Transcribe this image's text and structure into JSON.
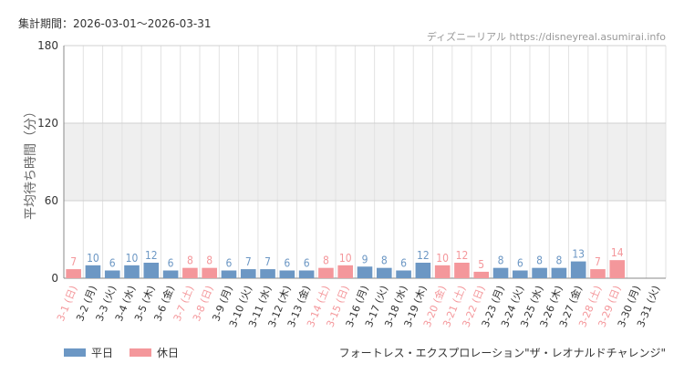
{
  "header": {
    "period_label": "集計期間：",
    "period_value": "2026-03-01～2026-03-31",
    "source_name": "ディズニーリアル",
    "source_url": "https://disneyreal.asumirai.info"
  },
  "legend": {
    "weekday_label": "平日",
    "holiday_label": "休日"
  },
  "attraction": "フォートレス・エクスプロレーション\"ザ・レオナルドチャレンジ\"",
  "colors": {
    "weekday": "#6c97c4",
    "holiday": "#f4979b",
    "band": "#efefef",
    "grid": "#e2e2e2"
  },
  "chart_data": {
    "type": "bar",
    "ylabel": "平均待ち時間（分）",
    "ylim": [
      0,
      180
    ],
    "yticks": [
      "0",
      "60",
      "120",
      "180"
    ],
    "shaded_band": [
      60,
      120
    ],
    "categories": [
      "3-1 (日)",
      "3-2 (月)",
      "3-3 (火)",
      "3-4 (水)",
      "3-5 (木)",
      "3-6 (金)",
      "3-7 (土)",
      "3-8 (日)",
      "3-9 (月)",
      "3-10 (火)",
      "3-11 (水)",
      "3-12 (木)",
      "3-13 (金)",
      "3-14 (土)",
      "3-15 (日)",
      "3-16 (月)",
      "3-17 (火)",
      "3-18 (水)",
      "3-19 (木)",
      "3-20 (金)",
      "3-21 (土)",
      "3-22 (日)",
      "3-23 (月)",
      "3-24 (火)",
      "3-25 (水)",
      "3-26 (木)",
      "3-27 (金)",
      "3-28 (土)",
      "3-29 (日)",
      "3-30 (月)",
      "3-31 (火)"
    ],
    "values": [
      7,
      10,
      6,
      10,
      12,
      6,
      8,
      8,
      6,
      7,
      7,
      6,
      6,
      8,
      10,
      9,
      8,
      6,
      12,
      10,
      12,
      5,
      8,
      6,
      8,
      8,
      13,
      7,
      14,
      null,
      null
    ],
    "holiday": [
      true,
      false,
      false,
      false,
      false,
      false,
      true,
      true,
      false,
      false,
      false,
      false,
      false,
      true,
      true,
      false,
      false,
      false,
      false,
      true,
      true,
      true,
      false,
      false,
      false,
      false,
      false,
      true,
      true,
      false,
      false
    ]
  }
}
